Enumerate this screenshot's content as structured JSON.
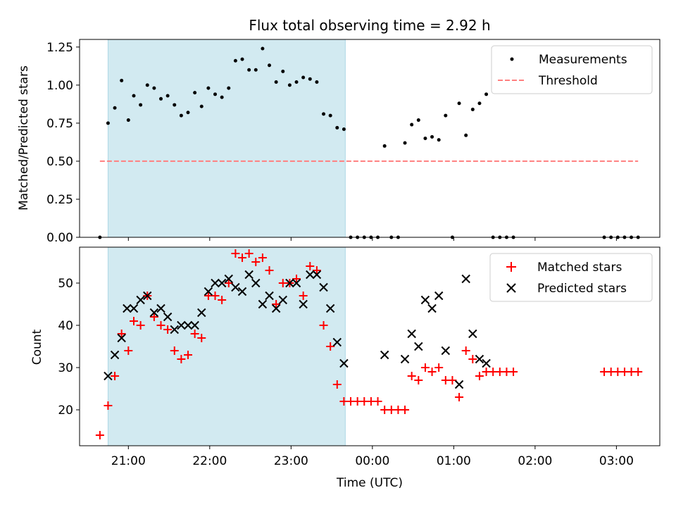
{
  "title": "Flux total observing time = 2.92 h",
  "colors": {
    "shade": "#add8e6",
    "measurement": "#000000",
    "threshold": "#ff7f7f",
    "matched": "#ff0000",
    "predicted": "#000000"
  },
  "time_ticks": [
    "21:00",
    "22:00",
    "23:00",
    "00:00",
    "01:00",
    "02:00",
    "03:00"
  ],
  "chart_data": [
    {
      "type": "scatter",
      "panel": "top",
      "title": "Flux total observing time = 2.92 h",
      "ylabel": "Matched/Predicted stars",
      "xlabel": "",
      "xlim": [
        "20:24",
        "03:32"
      ],
      "ylim": [
        0,
        1.3
      ],
      "yticks": [
        "0.00",
        "0.25",
        "0.50",
        "0.75",
        "1.00",
        "1.25"
      ],
      "legend": {
        "placement": "top-right",
        "entries": [
          "Measurements",
          "Threshold"
        ]
      },
      "shaded_span": [
        "20:45",
        "23:40"
      ],
      "threshold": {
        "name": "Threshold",
        "value": 0.5,
        "x": [
          "20:39",
          "03:16"
        ]
      },
      "series": [
        {
          "name": "Measurements",
          "points": [
            [
              "20:39",
              0.0
            ],
            [
              "20:45",
              0.75
            ],
            [
              "20:50",
              0.85
            ],
            [
              "20:55",
              1.03
            ],
            [
              "21:00",
              0.77
            ],
            [
              "21:04",
              0.93
            ],
            [
              "21:09",
              0.87
            ],
            [
              "21:14",
              1.0
            ],
            [
              "21:19",
              0.98
            ],
            [
              "21:24",
              0.91
            ],
            [
              "21:29",
              0.93
            ],
            [
              "21:34",
              0.87
            ],
            [
              "21:39",
              0.8
            ],
            [
              "21:44",
              0.82
            ],
            [
              "21:49",
              0.95
            ],
            [
              "21:54",
              0.86
            ],
            [
              "21:59",
              0.98
            ],
            [
              "22:04",
              0.94
            ],
            [
              "22:09",
              0.92
            ],
            [
              "22:14",
              0.98
            ],
            [
              "22:19",
              1.16
            ],
            [
              "22:24",
              1.17
            ],
            [
              "22:29",
              1.1
            ],
            [
              "22:34",
              1.1
            ],
            [
              "22:39",
              1.24
            ],
            [
              "22:44",
              1.13
            ],
            [
              "22:49",
              1.02
            ],
            [
              "22:54",
              1.09
            ],
            [
              "22:59",
              1.0
            ],
            [
              "23:04",
              1.02
            ],
            [
              "23:09",
              1.05
            ],
            [
              "23:14",
              1.04
            ],
            [
              "23:19",
              1.02
            ],
            [
              "23:24",
              0.81
            ],
            [
              "23:29",
              0.8
            ],
            [
              "23:34",
              0.72
            ],
            [
              "23:39",
              0.71
            ],
            [
              "23:44",
              0.0
            ],
            [
              "23:49",
              0.0
            ],
            [
              "23:54",
              0.0
            ],
            [
              "23:59",
              0.0
            ],
            [
              "00:04",
              0.0
            ],
            [
              "00:09",
              0.6
            ],
            [
              "00:14",
              0.0
            ],
            [
              "00:19",
              0.0
            ],
            [
              "00:24",
              0.62
            ],
            [
              "00:29",
              0.74
            ],
            [
              "00:34",
              0.77
            ],
            [
              "00:39",
              0.65
            ],
            [
              "00:44",
              0.66
            ],
            [
              "00:49",
              0.64
            ],
            [
              "00:54",
              0.8
            ],
            [
              "00:59",
              0.0
            ],
            [
              "01:04",
              0.88
            ],
            [
              "01:09",
              0.67
            ],
            [
              "01:14",
              0.84
            ],
            [
              "01:19",
              0.88
            ],
            [
              "01:24",
              0.94
            ],
            [
              "01:29",
              0.0
            ],
            [
              "01:34",
              0.0
            ],
            [
              "01:39",
              0.0
            ],
            [
              "01:44",
              0.0
            ],
            [
              "02:51",
              0.0
            ],
            [
              "02:56",
              0.0
            ],
            [
              "03:01",
              0.0
            ],
            [
              "03:06",
              0.0
            ],
            [
              "03:11",
              0.0
            ],
            [
              "03:16",
              0.0
            ]
          ]
        }
      ]
    },
    {
      "type": "scatter",
      "panel": "bottom",
      "xlabel": "Time (UTC)",
      "ylabel": "Count",
      "xlim": [
        "20:24",
        "03:32"
      ],
      "ylim": [
        11.5,
        58.5
      ],
      "yticks": [
        "20",
        "30",
        "40",
        "50"
      ],
      "xticks": [
        "21:00",
        "22:00",
        "23:00",
        "00:00",
        "01:00",
        "02:00",
        "03:00"
      ],
      "legend": {
        "placement": "top-right",
        "entries": [
          "Matched stars",
          "Predicted stars"
        ]
      },
      "shaded_span": [
        "20:45",
        "23:40"
      ],
      "series": [
        {
          "name": "Matched stars",
          "marker": "+",
          "points": [
            [
              "20:39",
              14
            ],
            [
              "20:45",
              21
            ],
            [
              "20:50",
              28
            ],
            [
              "20:55",
              38
            ],
            [
              "21:00",
              34
            ],
            [
              "21:04",
              41
            ],
            [
              "21:09",
              40
            ],
            [
              "21:14",
              47
            ],
            [
              "21:19",
              42
            ],
            [
              "21:24",
              40
            ],
            [
              "21:29",
              39
            ],
            [
              "21:34",
              34
            ],
            [
              "21:39",
              32
            ],
            [
              "21:44",
              33
            ],
            [
              "21:49",
              38
            ],
            [
              "21:54",
              37
            ],
            [
              "21:59",
              47
            ],
            [
              "22:04",
              47
            ],
            [
              "22:09",
              46
            ],
            [
              "22:14",
              50
            ],
            [
              "22:19",
              57
            ],
            [
              "22:24",
              56
            ],
            [
              "22:29",
              57
            ],
            [
              "22:34",
              55
            ],
            [
              "22:39",
              56
            ],
            [
              "22:44",
              53
            ],
            [
              "22:49",
              45
            ],
            [
              "22:54",
              50
            ],
            [
              "22:59",
              50
            ],
            [
              "23:04",
              51
            ],
            [
              "23:09",
              47
            ],
            [
              "23:14",
              54
            ],
            [
              "23:19",
              53
            ],
            [
              "23:24",
              40
            ],
            [
              "23:29",
              35
            ],
            [
              "23:34",
              26
            ],
            [
              "23:39",
              22
            ],
            [
              "23:44",
              22
            ],
            [
              "23:49",
              22
            ],
            [
              "23:54",
              22
            ],
            [
              "23:59",
              22
            ],
            [
              "00:04",
              22
            ],
            [
              "00:09",
              20
            ],
            [
              "00:14",
              20
            ],
            [
              "00:19",
              20
            ],
            [
              "00:24",
              20
            ],
            [
              "00:29",
              28
            ],
            [
              "00:34",
              27
            ],
            [
              "00:39",
              30
            ],
            [
              "00:44",
              29
            ],
            [
              "00:49",
              30
            ],
            [
              "00:54",
              27
            ],
            [
              "00:59",
              27
            ],
            [
              "01:04",
              23
            ],
            [
              "01:09",
              34
            ],
            [
              "01:14",
              32
            ],
            [
              "01:19",
              28
            ],
            [
              "01:24",
              29
            ],
            [
              "01:29",
              29
            ],
            [
              "01:34",
              29
            ],
            [
              "01:39",
              29
            ],
            [
              "01:44",
              29
            ],
            [
              "02:51",
              29
            ],
            [
              "02:56",
              29
            ],
            [
              "03:01",
              29
            ],
            [
              "03:06",
              29
            ],
            [
              "03:11",
              29
            ],
            [
              "03:16",
              29
            ]
          ]
        },
        {
          "name": "Predicted stars",
          "marker": "x",
          "points": [
            [
              "20:45",
              28
            ],
            [
              "20:50",
              33
            ],
            [
              "20:55",
              37
            ],
            [
              "20:59",
              44
            ],
            [
              "21:04",
              44
            ],
            [
              "21:09",
              46
            ],
            [
              "21:14",
              47
            ],
            [
              "21:19",
              43
            ],
            [
              "21:24",
              44
            ],
            [
              "21:29",
              42
            ],
            [
              "21:34",
              39
            ],
            [
              "21:39",
              40
            ],
            [
              "21:44",
              40
            ],
            [
              "21:49",
              40
            ],
            [
              "21:54",
              43
            ],
            [
              "21:59",
              48
            ],
            [
              "22:04",
              50
            ],
            [
              "22:09",
              50
            ],
            [
              "22:14",
              51
            ],
            [
              "22:19",
              49
            ],
            [
              "22:24",
              48
            ],
            [
              "22:29",
              52
            ],
            [
              "22:34",
              50
            ],
            [
              "22:39",
              45
            ],
            [
              "22:44",
              47
            ],
            [
              "22:49",
              44
            ],
            [
              "22:54",
              46
            ],
            [
              "22:59",
              50
            ],
            [
              "23:04",
              50
            ],
            [
              "23:09",
              45
            ],
            [
              "23:14",
              52
            ],
            [
              "23:19",
              52
            ],
            [
              "23:24",
              49
            ],
            [
              "23:29",
              44
            ],
            [
              "23:34",
              36
            ],
            [
              "23:39",
              31
            ],
            [
              "00:09",
              33
            ],
            [
              "00:24",
              32
            ],
            [
              "00:29",
              38
            ],
            [
              "00:34",
              35
            ],
            [
              "00:39",
              46
            ],
            [
              "00:44",
              44
            ],
            [
              "00:49",
              47
            ],
            [
              "00:54",
              34
            ],
            [
              "01:04",
              26
            ],
            [
              "01:09",
              51
            ],
            [
              "01:14",
              38
            ],
            [
              "01:19",
              32
            ],
            [
              "01:24",
              31
            ]
          ]
        }
      ]
    }
  ]
}
